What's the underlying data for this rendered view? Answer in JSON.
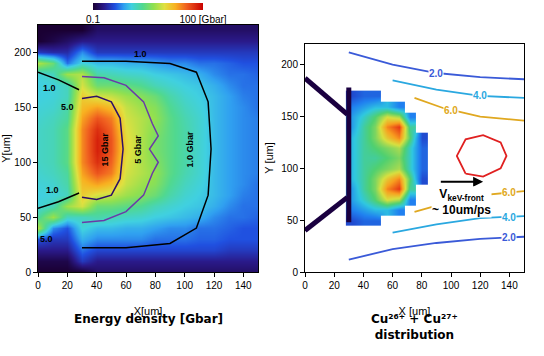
{
  "chart_data": [
    {
      "type": "heatmap",
      "title": "Energy density [Gbar]",
      "x_label": "X[um]",
      "y_label": "Y[um]",
      "xlim": [
        0,
        150
      ],
      "ylim": [
        0,
        225
      ],
      "xticks": [
        0,
        20,
        40,
        60,
        80,
        100,
        120,
        140
      ],
      "yticks": [
        0,
        50,
        100,
        150,
        200
      ],
      "x": [
        0,
        10,
        20,
        30,
        40,
        50,
        60,
        70,
        80,
        90,
        100,
        110,
        120,
        130,
        140,
        150
      ],
      "y": [
        0,
        10,
        20,
        30,
        40,
        50,
        60,
        70,
        80,
        90,
        100,
        110,
        120,
        130,
        140,
        150,
        160,
        170,
        180,
        190,
        200,
        210,
        220
      ],
      "cells": [
        [
          0.1,
          0.1,
          0.1,
          0.1,
          0.15,
          0.15,
          0.15,
          0.15,
          0.15,
          0.15,
          0.15,
          0.15,
          0.15,
          0.15,
          0.15,
          0.15
        ],
        [
          0.12,
          0.12,
          0.12,
          0.3,
          0.2,
          0.2,
          0.2,
          0.2,
          0.2,
          0.2,
          0.2,
          0.2,
          0.2,
          0.2,
          0.2,
          0.2
        ],
        [
          0.2,
          0.2,
          0.2,
          0.5,
          0.35,
          0.35,
          0.35,
          0.35,
          0.35,
          0.35,
          0.35,
          0.35,
          0.35,
          0.3,
          0.3,
          0.3
        ],
        [
          0.4,
          0.3,
          0.3,
          0.8,
          0.6,
          0.6,
          0.6,
          0.6,
          0.5,
          0.5,
          0.5,
          0.45,
          0.45,
          0.4,
          0.4,
          0.4
        ],
        [
          6,
          0.6,
          0.4,
          1.2,
          0.9,
          0.9,
          0.8,
          0.8,
          0.7,
          0.6,
          0.6,
          0.5,
          0.5,
          0.45,
          0.4,
          0.4
        ],
        [
          2,
          5,
          1.5,
          1.5,
          1.8,
          1.6,
          1.4,
          1.3,
          1.1,
          1.0,
          0.9,
          0.8,
          0.6,
          0.5,
          0.5,
          0.45
        ],
        [
          1.2,
          1.6,
          5,
          8,
          3,
          3,
          2.6,
          2.2,
          1.6,
          1.3,
          1.1,
          1.0,
          0.8,
          0.6,
          0.5,
          0.5
        ],
        [
          1.1,
          1.2,
          1.5,
          12,
          8,
          7,
          5,
          4,
          3,
          1.8,
          1.3,
          1.1,
          0.9,
          0.7,
          0.55,
          0.5
        ],
        [
          1.2,
          1.3,
          1.8,
          15,
          20,
          15,
          7,
          5,
          4,
          2.2,
          1.5,
          1.2,
          0.9,
          0.7,
          0.6,
          0.5
        ],
        [
          1.3,
          1.5,
          2,
          20,
          40,
          28,
          8,
          6,
          4.5,
          2.5,
          1.7,
          1.3,
          0.9,
          0.7,
          0.6,
          0.55
        ],
        [
          1.4,
          1.6,
          2.5,
          25,
          60,
          35,
          9,
          6,
          4,
          2.5,
          1.8,
          1.3,
          0.9,
          0.7,
          0.6,
          0.55
        ],
        [
          1.4,
          1.6,
          2.5,
          25,
          70,
          40,
          10,
          6,
          3.5,
          2.5,
          1.8,
          1.3,
          0.9,
          0.7,
          0.6,
          0.55
        ],
        [
          1.4,
          1.6,
          2.5,
          25,
          70,
          40,
          10,
          6,
          3.5,
          2.5,
          1.8,
          1.3,
          0.9,
          0.7,
          0.6,
          0.55
        ],
        [
          1.4,
          1.6,
          2.5,
          25,
          60,
          35,
          9,
          6,
          4,
          2.5,
          1.8,
          1.3,
          0.9,
          0.7,
          0.6,
          0.55
        ],
        [
          1.3,
          1.5,
          2,
          20,
          40,
          28,
          8,
          6,
          4.5,
          2.5,
          1.7,
          1.3,
          0.9,
          0.7,
          0.6,
          0.55
        ],
        [
          1.2,
          1.3,
          1.8,
          15,
          20,
          15,
          7,
          5,
          4,
          2.2,
          1.5,
          1.2,
          0.9,
          0.7,
          0.6,
          0.5
        ],
        [
          1.1,
          1.2,
          1.5,
          12,
          8,
          7,
          5,
          4,
          3,
          1.8,
          1.3,
          1.1,
          0.9,
          0.7,
          0.55,
          0.5
        ],
        [
          1.1,
          1.2,
          1.5,
          8,
          3,
          3,
          2.6,
          2.2,
          1.6,
          1.3,
          1.1,
          1.0,
          0.8,
          0.6,
          0.5,
          0.5
        ],
        [
          1.2,
          1.5,
          5,
          6,
          1.8,
          1.6,
          1.4,
          1.3,
          1.1,
          1.0,
          0.9,
          0.8,
          0.6,
          0.5,
          0.5,
          0.45
        ],
        [
          6,
          3,
          0.5,
          1.2,
          0.9,
          0.9,
          0.8,
          0.8,
          0.7,
          0.6,
          0.6,
          0.5,
          0.5,
          0.45,
          0.4,
          0.4
        ],
        [
          0.3,
          0.25,
          0.25,
          0.6,
          0.3,
          0.3,
          0.3,
          0.3,
          0.3,
          0.3,
          0.3,
          0.3,
          0.3,
          0.3,
          0.3,
          0.3
        ],
        [
          0.1,
          0.12,
          0.15,
          0.2,
          0.2,
          0.2,
          0.2,
          0.2,
          0.2,
          0.2,
          0.2,
          0.2,
          0.2,
          0.2,
          0.2,
          0.2
        ],
        [
          0.1,
          0.1,
          0.1,
          0.1,
          0.15,
          0.15,
          0.15,
          0.15,
          0.15,
          0.15,
          0.15,
          0.15,
          0.15,
          0.15,
          0.15,
          0.15
        ]
      ],
      "colorbar": {
        "range": [
          0.1,
          100
        ],
        "ticks": [
          0.1,
          {
            "value": 100,
            "label": "100 [Gbar]"
          }
        ],
        "log": true
      },
      "contours": [
        {
          "color": "#2e0f66",
          "x": [
            30,
            40,
            50,
            56,
            58,
            56,
            50,
            40,
            30
          ],
          "y": [
            68,
            66,
            70,
            85,
            112,
            140,
            155,
            160,
            158
          ],
          "labels": [
            {
              "text": "15 Gbar",
              "x": 46,
              "y": 112,
              "orientation": "vertical"
            }
          ]
        },
        {
          "color": "#6a3aa8",
          "x": [
            30,
            45,
            60,
            72,
            78,
            82,
            76,
            82,
            78,
            72,
            60,
            45,
            30
          ],
          "y": [
            45,
            47,
            55,
            70,
            90,
            100,
            112,
            124,
            135,
            155,
            170,
            177,
            178
          ],
          "labels": [
            {
              "text": "5 Gbar",
              "x": 68,
              "y": 112,
              "orientation": "vertical"
            }
          ]
        },
        {
          "color": "#000000",
          "x": [
            30,
            60,
            90,
            108,
            116,
            118,
            116,
            108,
            90,
            60,
            30
          ],
          "y": [
            22,
            22,
            26,
            40,
            70,
            112,
            155,
            182,
            190,
            192,
            192
          ],
          "labels": [
            {
              "text": "1.0 Gbar",
              "x": 104,
              "y": 112,
              "orientation": "vertical"
            },
            {
              "text": "1.0",
              "x": 70,
              "y": 199
            }
          ]
        },
        {
          "color": "#000000",
          "x": [
            0,
            14,
            28
          ],
          "y": [
            182,
            175,
            166
          ],
          "labels": [
            {
              "text": "1.0",
              "x": 8,
              "y": 168
            }
          ]
        },
        {
          "color": "#000000",
          "x": [
            0,
            14,
            28
          ],
          "y": [
            58,
            64,
            72
          ],
          "labels": [
            {
              "text": "1.0",
              "x": 10,
              "y": 75
            }
          ]
        }
      ],
      "labels": [
        {
          "text": "5.0",
          "x": 20,
          "y": 150
        },
        {
          "text": "5.0",
          "x": 6,
          "y": 30
        }
      ]
    },
    {
      "type": "heatmap",
      "title": "Cu²⁶⁺ + Cu²⁷⁺ distribution",
      "x_label": "X [um]",
      "y_label": "Y [um]",
      "xlim": [
        0,
        150
      ],
      "ylim": [
        0,
        220
      ],
      "xticks": [
        0,
        20,
        40,
        60,
        80,
        100,
        120,
        140
      ],
      "yticks": [
        0,
        50,
        100,
        150,
        200
      ],
      "x": [
        32,
        40,
        48,
        56,
        64,
        72,
        80
      ],
      "y": [
        50,
        60,
        70,
        80,
        90,
        100,
        110,
        120,
        130,
        140,
        150,
        160,
        170
      ],
      "cells": [
        [
          0.2,
          0.25,
          0.25,
          null,
          null,
          null,
          null
        ],
        [
          0.3,
          0.35,
          0.4,
          0.4,
          0.3,
          null,
          null
        ],
        [
          0.35,
          0.45,
          0.55,
          0.7,
          0.65,
          0.3,
          null
        ],
        [
          0.35,
          0.5,
          0.6,
          0.85,
          0.95,
          0.5,
          null
        ],
        [
          0.4,
          0.5,
          0.6,
          0.75,
          0.85,
          0.55,
          0.2
        ],
        [
          0.4,
          0.5,
          0.55,
          0.6,
          0.65,
          0.45,
          0.25
        ],
        [
          0.4,
          0.5,
          0.5,
          0.55,
          0.6,
          0.45,
          0.25
        ],
        [
          0.4,
          0.5,
          0.55,
          0.6,
          0.65,
          0.45,
          0.25
        ],
        [
          0.4,
          0.5,
          0.6,
          0.75,
          0.85,
          0.55,
          0.2
        ],
        [
          0.35,
          0.5,
          0.6,
          0.85,
          0.95,
          0.5,
          null
        ],
        [
          0.35,
          0.45,
          0.55,
          0.7,
          0.65,
          0.3,
          null
        ],
        [
          0.3,
          0.35,
          0.4,
          0.4,
          0.3,
          null,
          null
        ],
        [
          0.2,
          0.25,
          0.25,
          null,
          null,
          null,
          null
        ]
      ],
      "colorbar": {
        "range": [
          0,
          1
        ]
      },
      "walls": [
        {
          "x": [
            0,
            29
          ],
          "y": [
            187,
            152
          ]
        },
        {
          "x": [
            0,
            29
          ],
          "y": [
            40,
            72
          ]
        },
        {
          "x": [
            30,
            30
          ],
          "y": [
            48,
            178
          ]
        }
      ],
      "contours": [
        {
          "color": "#3a5ad8",
          "x": [
            30,
            60,
            90,
            120,
            150,
            null,
            30,
            60,
            90,
            120,
            150
          ],
          "y": [
            212,
            200,
            192,
            188,
            186,
            null,
            12,
            22,
            28,
            32,
            34
          ],
          "labels": [
            {
              "text": "2.0",
              "x": 90,
              "y": 192
            },
            {
              "text": "2.0",
              "x": 140,
              "y": 33
            }
          ]
        },
        {
          "color": "#2aa8e0",
          "x": [
            60,
            90,
            120,
            150,
            null,
            60,
            90,
            120,
            150
          ],
          "y": [
            185,
            176,
            170,
            168,
            null,
            38,
            46,
            52,
            54
          ],
          "labels": [
            {
              "text": "4.0",
              "x": 120,
              "y": 170
            },
            {
              "text": "4.0",
              "x": 140,
              "y": 53
            }
          ]
        },
        {
          "color": "#e0a820",
          "x": [
            75,
            95,
            120,
            150,
            null,
            75,
            95,
            120,
            150
          ],
          "y": [
            168,
            158,
            150,
            146,
            null,
            58,
            66,
            74,
            78
          ],
          "labels": [
            {
              "text": "6.0",
              "x": 100,
              "y": 156
            },
            {
              "text": "6.0",
              "x": 140,
              "y": 77
            }
          ]
        },
        {
          "color": "#e02020",
          "x": [
            110,
            122,
            134,
            138,
            134,
            122,
            110,
            104,
            110
          ],
          "y": [
            95,
            92,
            100,
            112,
            125,
            132,
            128,
            112,
            95
          ]
        }
      ],
      "arrow": {
        "x": [
          92,
          122
        ],
        "y": [
          87,
          87
        ],
        "label": "V",
        "subscript": "keV-front",
        "second_line": "~ 10um/ps"
      }
    }
  ]
}
